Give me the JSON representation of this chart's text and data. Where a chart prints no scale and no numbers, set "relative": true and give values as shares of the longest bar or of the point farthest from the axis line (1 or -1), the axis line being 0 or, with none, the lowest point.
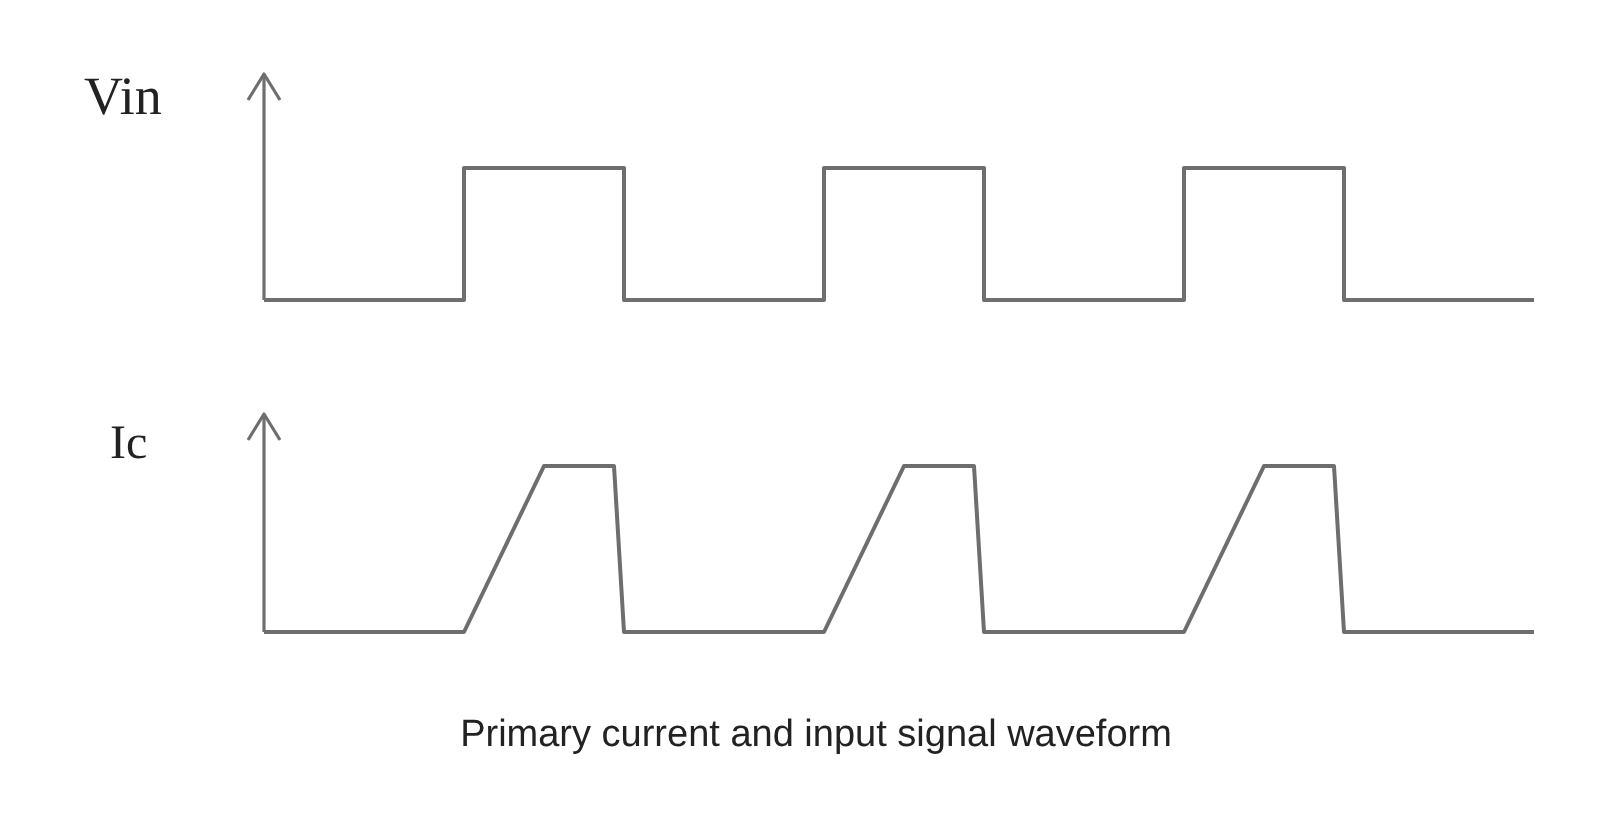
{
  "chart_data": [
    {
      "type": "step",
      "ylabel": "Vin",
      "relative": true,
      "tick_labels": false,
      "marker": "none",
      "categories": [
        null,
        null,
        null,
        null,
        null,
        null,
        null,
        null,
        null,
        null,
        null,
        null,
        null,
        null,
        null,
        null,
        null,
        null,
        null,
        null,
        null,
        null,
        null,
        null,
        null,
        null,
        null,
        null,
        null,
        null,
        null,
        null,
        null,
        null,
        null,
        null,
        null,
        null,
        null,
        null,
        null,
        null,
        null,
        null,
        null,
        null,
        null,
        null,
        null,
        null,
        null,
        null,
        null,
        null,
        null,
        null,
        null,
        null,
        null,
        null,
        null,
        null,
        null,
        null,
        null,
        null,
        null,
        null,
        null,
        null,
        null,
        null,
        null,
        null,
        null,
        null,
        null,
        null,
        null,
        null,
        null,
        null,
        null,
        null,
        null,
        null,
        null,
        null,
        null,
        null,
        null,
        null,
        null,
        null,
        null,
        null,
        null,
        null,
        null,
        null,
        null,
        null,
        null,
        null,
        null,
        null,
        null,
        null,
        null,
        null,
        null,
        null,
        null,
        null,
        null,
        null,
        null,
        null,
        null,
        null,
        null,
        null,
        null,
        null,
        null,
        null,
        null,
        null
      ],
      "series": [
        {
          "color": "#6e6e6e",
          "values": [
            0,
            0,
            0,
            0,
            0,
            0,
            0,
            0,
            0,
            0,
            0,
            0,
            0,
            0,
            0,
            0,
            0,
            0,
            0,
            0,
            1,
            1,
            1,
            1,
            1,
            1,
            1,
            1,
            1,
            1,
            1,
            1,
            1,
            1,
            1,
            1,
            0,
            0,
            0,
            0,
            0,
            0,
            0,
            0,
            0,
            0,
            0,
            0,
            0,
            0,
            0,
            0,
            0,
            0,
            0,
            0,
            1,
            1,
            1,
            1,
            1,
            1,
            1,
            1,
            1,
            1,
            1,
            1,
            1,
            1,
            1,
            1,
            0,
            0,
            0,
            0,
            0,
            0,
            0,
            0,
            0,
            0,
            0,
            0,
            0,
            0,
            0,
            0,
            0,
            0,
            0,
            0,
            1,
            1,
            1,
            1,
            1,
            1,
            1,
            1,
            1,
            1,
            1,
            1,
            1,
            1,
            1,
            1,
            0,
            0,
            0,
            0,
            0,
            0,
            0,
            0,
            0,
            0,
            0,
            0,
            0,
            0,
            0,
            0,
            0,
            0,
            0,
            0
          ]
        }
      ]
    },
    {
      "type": "line",
      "ylabel": "Ic",
      "relative": true,
      "tick_labels": false,
      "marker": "none",
      "annotations": [
        "Primary current and input signal waveform"
      ],
      "categories": [
        null,
        null,
        null,
        null,
        null,
        null,
        null,
        null,
        null,
        null,
        null,
        null,
        null,
        null,
        null,
        null,
        null,
        null,
        null,
        null,
        null,
        null,
        null,
        null,
        null,
        null,
        null,
        null,
        null,
        null,
        null,
        null,
        null,
        null,
        null,
        null,
        null,
        null,
        null,
        null,
        null,
        null,
        null,
        null,
        null,
        null,
        null,
        null,
        null,
        null,
        null,
        null,
        null,
        null,
        null,
        null,
        null,
        null,
        null,
        null,
        null,
        null,
        null,
        null,
        null,
        null,
        null,
        null,
        null,
        null,
        null,
        null,
        null,
        null,
        null,
        null,
        null,
        null,
        null,
        null,
        null,
        null,
        null,
        null,
        null,
        null,
        null,
        null,
        null,
        null,
        null,
        null,
        null,
        null,
        null,
        null,
        null,
        null,
        null,
        null,
        null,
        null,
        null,
        null,
        null,
        null,
        null,
        null,
        null,
        null,
        null,
        null,
        null,
        null,
        null,
        null,
        null,
        null,
        null,
        null,
        null,
        null,
        null,
        null,
        null,
        null,
        null,
        null
      ],
      "series": [
        {
          "color": "#6e6e6e",
          "values": [
            0,
            0,
            0,
            0,
            0,
            0,
            0,
            0,
            0,
            0,
            0,
            0,
            0,
            0,
            0,
            0,
            0,
            0,
            0,
            0,
            0,
            0.125,
            0.25,
            0.375,
            0.5,
            0.625,
            0.75,
            0.875,
            1,
            1,
            1,
            1,
            1,
            1,
            1,
            1,
            0,
            0,
            0,
            0,
            0,
            0,
            0,
            0,
            0,
            0,
            0,
            0,
            0,
            0,
            0,
            0,
            0,
            0,
            0,
            0,
            0,
            0.125,
            0.25,
            0.375,
            0.5,
            0.625,
            0.75,
            0.875,
            1,
            1,
            1,
            1,
            1,
            1,
            1,
            1,
            0,
            0,
            0,
            0,
            0,
            0,
            0,
            0,
            0,
            0,
            0,
            0,
            0,
            0,
            0,
            0,
            0,
            0,
            0,
            0,
            0,
            0.125,
            0.25,
            0.375,
            0.5,
            0.625,
            0.75,
            0.875,
            1,
            1,
            1,
            1,
            1,
            1,
            1,
            1,
            0,
            0,
            0,
            0,
            0,
            0,
            0,
            0,
            0,
            0,
            0,
            0,
            0,
            0,
            0,
            0,
            0,
            0,
            0,
            0
          ]
        }
      ]
    }
  ]
}
